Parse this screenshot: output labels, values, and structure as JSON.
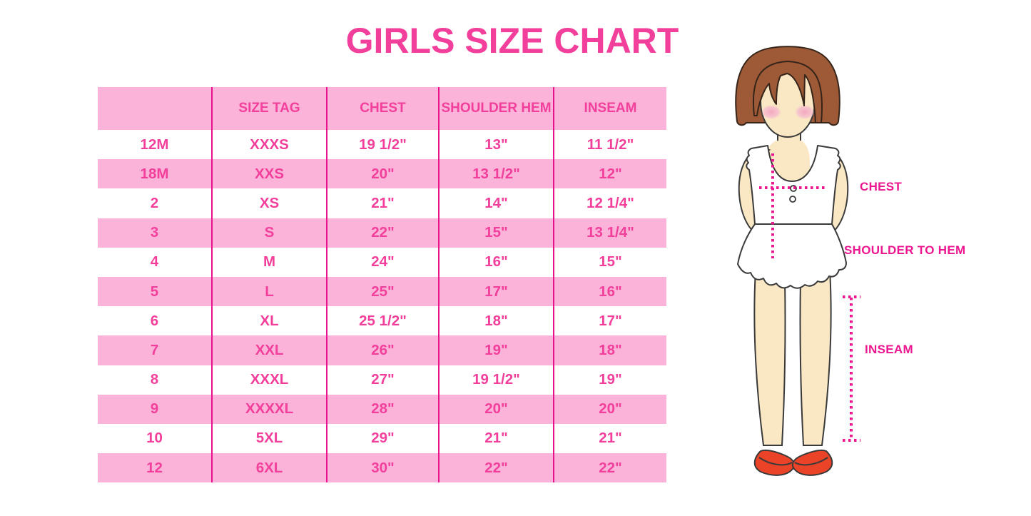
{
  "page": {
    "title": "GIRLS SIZE CHART"
  },
  "measurement_labels": {
    "chest": "CHEST",
    "shoulder_to_hem": "SHOULDER TO HEM",
    "inseam": "INSEAM"
  },
  "chart_data": {
    "type": "table",
    "title": "GIRLS SIZE CHART",
    "columns": [
      "",
      "SIZE TAG",
      "CHEST",
      "SHOULDER HEM",
      "INSEAM"
    ],
    "rows": [
      [
        "12M",
        "XXXS",
        "19 1/2\"",
        "13\"",
        "11 1/2\""
      ],
      [
        "18M",
        "XXS",
        "20\"",
        "13 1/2\"",
        "12\""
      ],
      [
        "2",
        "XS",
        "21\"",
        "14\"",
        "12 1/4\""
      ],
      [
        "3",
        "S",
        "22\"",
        "15\"",
        "13 1/4\""
      ],
      [
        "4",
        "M",
        "24\"",
        "16\"",
        "15\""
      ],
      [
        "5",
        "L",
        "25\"",
        "17\"",
        "16\""
      ],
      [
        "6",
        "XL",
        "25 1/2\"",
        "18\"",
        "17\""
      ],
      [
        "7",
        "XXL",
        "26\"",
        "19\"",
        "18\""
      ],
      [
        "8",
        "XXXL",
        "27\"",
        "19 1/2\"",
        "19\""
      ],
      [
        "9",
        "XXXXL",
        "28\"",
        "20\"",
        "20\""
      ],
      [
        "10",
        "5XL",
        "29\"",
        "21\"",
        "21\""
      ],
      [
        "12",
        "6XL",
        "30\"",
        "22\"",
        "22\""
      ]
    ],
    "annotations": [
      "CHEST",
      "SHOULDER TO HEM",
      "INSEAM"
    ],
    "layout_hints": {
      "striped_rows": true,
      "header_row": true,
      "grid": "vertical-separators-only"
    }
  },
  "colors": {
    "title_pink": "#F23F9B",
    "row_pink": "#FBB3D9",
    "separator_magenta": "#E7128C",
    "label_magenta": "#EC1690",
    "dotted_line_magenta": "#EC1690",
    "hair_brown": "#9E5A37",
    "skin": "#FAE7C4",
    "blush_pink": "#F4B7C9",
    "shoe_red": "#EA4327",
    "background": "#FFFFFF"
  }
}
